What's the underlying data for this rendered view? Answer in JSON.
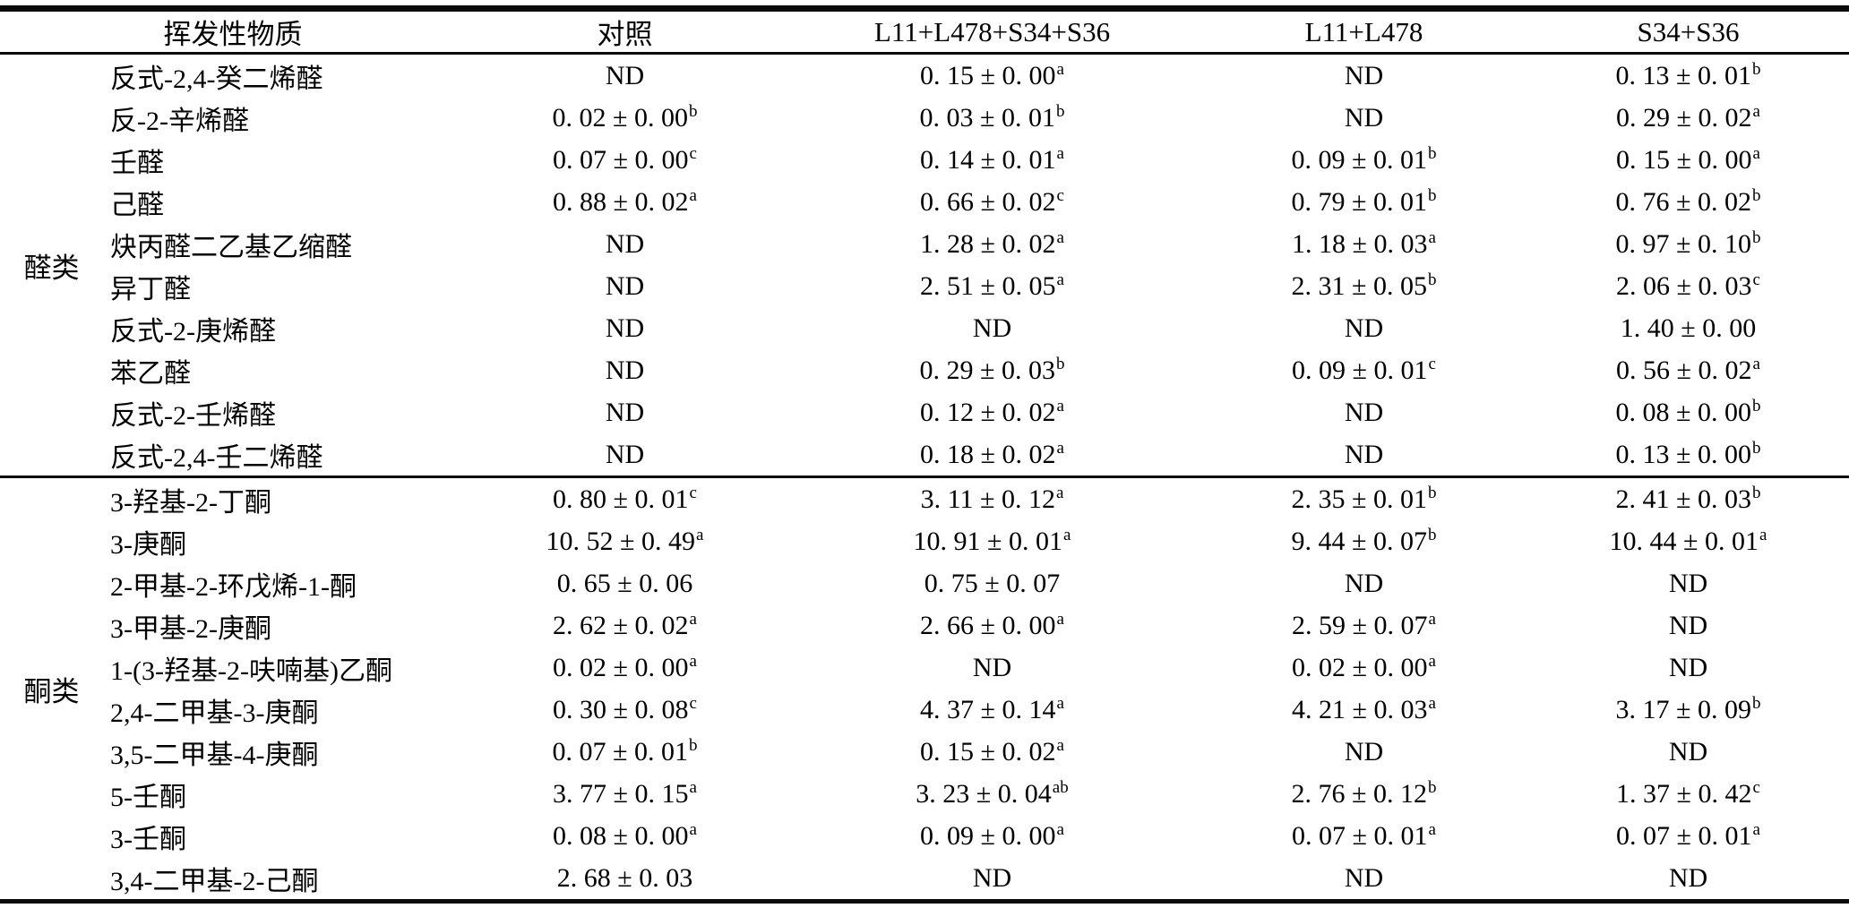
{
  "table": {
    "columns": [
      "挥发性物质",
      "对照",
      "L11+L478+S34+S36",
      "L11+L478",
      "S34+S36"
    ],
    "not_detected_label": "ND",
    "groups": [
      {
        "name": "醛类",
        "rows": [
          {
            "name": "反式-2,4-癸二烯醛",
            "values": [
              {
                "t": "ND",
                "s": ""
              },
              {
                "t": "0. 15 ± 0. 00",
                "s": "a"
              },
              {
                "t": "ND",
                "s": ""
              },
              {
                "t": "0. 13 ± 0. 01",
                "s": "b"
              }
            ]
          },
          {
            "name": "反-2-辛烯醛",
            "values": [
              {
                "t": "0. 02 ± 0. 00",
                "s": "b"
              },
              {
                "t": "0. 03 ± 0. 01",
                "s": "b"
              },
              {
                "t": "ND",
                "s": ""
              },
              {
                "t": "0. 29 ± 0. 02",
                "s": "a"
              }
            ]
          },
          {
            "name": "壬醛",
            "values": [
              {
                "t": "0. 07 ± 0. 00",
                "s": "c"
              },
              {
                "t": "0. 14 ± 0. 01",
                "s": "a"
              },
              {
                "t": "0. 09 ± 0. 01",
                "s": "b"
              },
              {
                "t": "0. 15 ± 0. 00",
                "s": "a"
              }
            ]
          },
          {
            "name": "己醛",
            "values": [
              {
                "t": "0. 88 ± 0. 02",
                "s": "a"
              },
              {
                "t": "0. 66 ± 0. 02",
                "s": "c"
              },
              {
                "t": "0. 79 ± 0. 01",
                "s": "b"
              },
              {
                "t": "0. 76 ± 0. 02",
                "s": "b"
              }
            ]
          },
          {
            "name": "炔丙醛二乙基乙缩醛",
            "values": [
              {
                "t": "ND",
                "s": ""
              },
              {
                "t": "1. 28 ± 0. 02",
                "s": "a"
              },
              {
                "t": "1. 18 ± 0. 03",
                "s": "a"
              },
              {
                "t": "0. 97 ± 0. 10",
                "s": "b"
              }
            ]
          },
          {
            "name": "异丁醛",
            "values": [
              {
                "t": "ND",
                "s": ""
              },
              {
                "t": "2. 51 ± 0. 05",
                "s": "a"
              },
              {
                "t": "2. 31 ± 0. 05",
                "s": "b"
              },
              {
                "t": "2. 06 ± 0. 03",
                "s": "c"
              }
            ]
          },
          {
            "name": "反式-2-庚烯醛",
            "values": [
              {
                "t": "ND",
                "s": ""
              },
              {
                "t": "ND",
                "s": ""
              },
              {
                "t": "ND",
                "s": ""
              },
              {
                "t": "1. 40 ± 0. 00",
                "s": ""
              }
            ]
          },
          {
            "name": "苯乙醛",
            "values": [
              {
                "t": "ND",
                "s": ""
              },
              {
                "t": "0. 29 ± 0. 03",
                "s": "b"
              },
              {
                "t": "0. 09 ± 0. 01",
                "s": "c"
              },
              {
                "t": "0. 56 ± 0. 02",
                "s": "a"
              }
            ]
          },
          {
            "name": "反式-2-壬烯醛",
            "values": [
              {
                "t": "ND",
                "s": ""
              },
              {
                "t": "0. 12 ± 0. 02",
                "s": "a"
              },
              {
                "t": "ND",
                "s": ""
              },
              {
                "t": "0. 08 ± 0. 00",
                "s": "b"
              }
            ]
          },
          {
            "name": "反式-2,4-壬二烯醛",
            "values": [
              {
                "t": "ND",
                "s": ""
              },
              {
                "t": "0. 18 ± 0. 02",
                "s": "a"
              },
              {
                "t": "ND",
                "s": ""
              },
              {
                "t": "0. 13 ± 0. 00",
                "s": "b"
              }
            ]
          }
        ]
      },
      {
        "name": "酮类",
        "rows": [
          {
            "name": "3-羟基-2-丁酮",
            "values": [
              {
                "t": "0. 80 ± 0. 01",
                "s": "c"
              },
              {
                "t": "3. 11 ± 0. 12",
                "s": "a"
              },
              {
                "t": "2. 35 ± 0. 01",
                "s": "b"
              },
              {
                "t": "2. 41 ± 0. 03",
                "s": "b"
              }
            ]
          },
          {
            "name": "3-庚酮",
            "values": [
              {
                "t": "10. 52 ± 0. 49",
                "s": "a"
              },
              {
                "t": "10. 91 ± 0. 01",
                "s": "a"
              },
              {
                "t": "9. 44 ± 0. 07",
                "s": "b"
              },
              {
                "t": "10. 44 ± 0. 01",
                "s": "a"
              }
            ]
          },
          {
            "name": "2-甲基-2-环戊烯-1-酮",
            "values": [
              {
                "t": "0. 65 ± 0. 06",
                "s": ""
              },
              {
                "t": "0. 75 ± 0. 07",
                "s": ""
              },
              {
                "t": "ND",
                "s": ""
              },
              {
                "t": "ND",
                "s": ""
              }
            ]
          },
          {
            "name": "3-甲基-2-庚酮",
            "values": [
              {
                "t": "2. 62 ± 0. 02",
                "s": "a"
              },
              {
                "t": "2. 66 ± 0. 00",
                "s": "a"
              },
              {
                "t": "2. 59 ± 0. 07",
                "s": "a"
              },
              {
                "t": "ND",
                "s": ""
              }
            ]
          },
          {
            "name": "1-(3-羟基-2-呋喃基)乙酮",
            "values": [
              {
                "t": "0. 02 ± 0. 00",
                "s": "a"
              },
              {
                "t": "ND",
                "s": ""
              },
              {
                "t": "0. 02 ± 0. 00",
                "s": "a"
              },
              {
                "t": "ND",
                "s": ""
              }
            ]
          },
          {
            "name": "2,4-二甲基-3-庚酮",
            "values": [
              {
                "t": "0. 30 ± 0. 08",
                "s": "c"
              },
              {
                "t": "4. 37 ± 0. 14",
                "s": "a"
              },
              {
                "t": "4. 21 ± 0. 03",
                "s": "a"
              },
              {
                "t": "3. 17 ± 0. 09",
                "s": "b"
              }
            ]
          },
          {
            "name": "3,5-二甲基-4-庚酮",
            "values": [
              {
                "t": "0. 07 ± 0. 01",
                "s": "b"
              },
              {
                "t": "0. 15 ± 0. 02",
                "s": "a"
              },
              {
                "t": "ND",
                "s": ""
              },
              {
                "t": "ND",
                "s": ""
              }
            ]
          },
          {
            "name": "5-壬酮",
            "values": [
              {
                "t": "3. 77 ± 0. 15",
                "s": "a"
              },
              {
                "t": "3. 23 ± 0. 04",
                "s": "ab"
              },
              {
                "t": "2. 76 ± 0. 12",
                "s": "b"
              },
              {
                "t": "1. 37 ± 0. 42",
                "s": "c"
              }
            ]
          },
          {
            "name": "3-壬酮",
            "values": [
              {
                "t": "0. 08 ± 0. 00",
                "s": "a"
              },
              {
                "t": "0. 09 ± 0. 00",
                "s": "a"
              },
              {
                "t": "0. 07 ± 0. 01",
                "s": "a"
              },
              {
                "t": "0. 07 ± 0. 01",
                "s": "a"
              }
            ]
          },
          {
            "name": "3,4-二甲基-2-己酮",
            "values": [
              {
                "t": "2. 68 ± 0. 03",
                "s": ""
              },
              {
                "t": "ND",
                "s": ""
              },
              {
                "t": "ND",
                "s": ""
              },
              {
                "t": "ND",
                "s": ""
              }
            ]
          }
        ]
      }
    ]
  }
}
